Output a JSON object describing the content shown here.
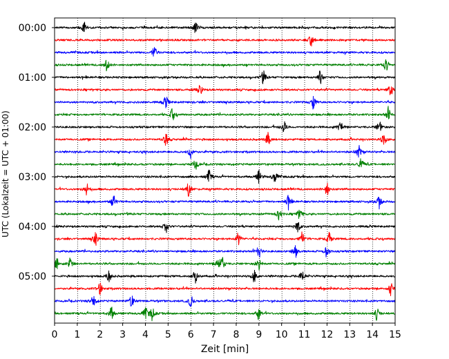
{
  "chart_data": {
    "type": "line",
    "title": "",
    "xlabel": "Zeit  [min]",
    "ylabel": "UTC (Lokalzeit = UTC + 01:00)",
    "xlim": [
      0,
      15
    ],
    "x_ticks": [
      "0",
      "1",
      "2",
      "3",
      "4",
      "5",
      "6",
      "7",
      "8",
      "9",
      "10",
      "11",
      "12",
      "13",
      "14",
      "15"
    ],
    "y_tick_labels": [
      "00:00",
      "01:00",
      "02:00",
      "03:00",
      "04:00",
      "05:00"
    ],
    "grid": "vertical dotted lines at each minute",
    "row_duration_minutes": 15,
    "line_colors": [
      "#000000",
      "#ff0000",
      "#0000ff",
      "#008000"
    ],
    "rows": [
      {
        "start": "00:00",
        "color": "#000000",
        "events_min": [
          1.3,
          6.2
        ]
      },
      {
        "start": "00:15",
        "color": "#ff0000",
        "events_min": [
          11.3
        ]
      },
      {
        "start": "00:30",
        "color": "#0000ff",
        "events_min": [
          4.4
        ]
      },
      {
        "start": "00:45",
        "color": "#008000",
        "events_min": [
          2.3,
          14.6
        ]
      },
      {
        "start": "01:00",
        "color": "#000000",
        "events_min": [
          9.2,
          11.7
        ]
      },
      {
        "start": "01:15",
        "color": "#ff0000",
        "events_min": [
          6.4,
          14.8
        ]
      },
      {
        "start": "01:30",
        "color": "#0000ff",
        "events_min": [
          4.9,
          11.4
        ]
      },
      {
        "start": "01:45",
        "color": "#008000",
        "events_min": [
          5.2,
          14.7
        ]
      },
      {
        "start": "02:00",
        "color": "#000000",
        "events_min": [
          10.1,
          12.6,
          14.3
        ]
      },
      {
        "start": "02:15",
        "color": "#ff0000",
        "events_min": [
          4.9,
          9.4,
          14.5
        ]
      },
      {
        "start": "02:30",
        "color": "#0000ff",
        "events_min": [
          6.0,
          13.4
        ]
      },
      {
        "start": "02:45",
        "color": "#008000",
        "events_min": [
          6.2,
          13.5
        ]
      },
      {
        "start": "03:00",
        "color": "#000000",
        "events_min": [
          6.8,
          9.0,
          9.7
        ]
      },
      {
        "start": "03:15",
        "color": "#ff0000",
        "events_min": [
          1.4,
          5.9,
          12.0
        ]
      },
      {
        "start": "03:30",
        "color": "#0000ff",
        "events_min": [
          2.6,
          10.3,
          14.3
        ]
      },
      {
        "start": "03:45",
        "color": "#008000",
        "events_min": [
          9.9,
          10.8
        ]
      },
      {
        "start": "04:00",
        "color": "#000000",
        "events_min": [
          4.9,
          10.7
        ]
      },
      {
        "start": "04:15",
        "color": "#ff0000",
        "events_min": [
          1.8,
          8.1,
          10.9,
          12.1
        ]
      },
      {
        "start": "04:30",
        "color": "#0000ff",
        "events_min": [
          9.0,
          10.6,
          12.0
        ]
      },
      {
        "start": "04:45",
        "color": "#008000",
        "events_min": [
          0.1,
          0.7,
          7.2,
          7.4,
          9.0
        ]
      },
      {
        "start": "05:00",
        "color": "#000000",
        "events_min": [
          2.4,
          6.2,
          8.8,
          10.9
        ]
      },
      {
        "start": "05:15",
        "color": "#ff0000",
        "events_min": [
          2.0,
          14.8
        ]
      },
      {
        "start": "05:30",
        "color": "#0000ff",
        "events_min": [
          1.7,
          3.4,
          6.0
        ]
      },
      {
        "start": "05:45",
        "color": "#008000",
        "events_min": [
          2.5,
          4.0,
          4.3,
          9.0,
          14.2
        ]
      }
    ]
  }
}
